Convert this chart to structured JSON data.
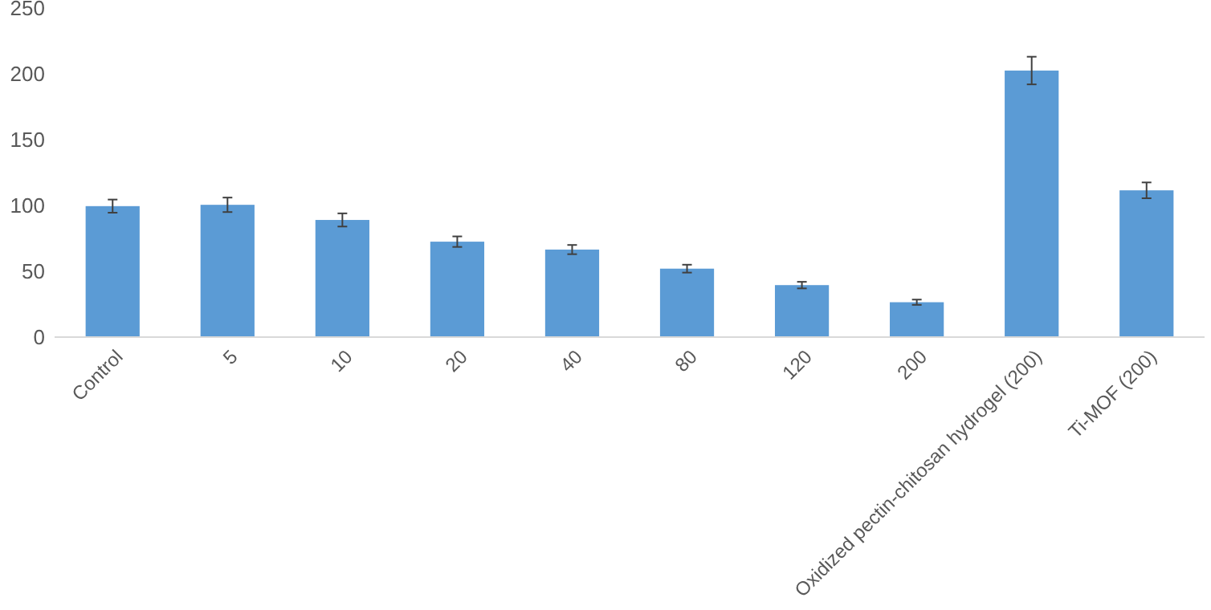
{
  "chart_data": {
    "type": "bar",
    "categories": [
      "Control",
      "5",
      "10",
      "20",
      "40",
      "80",
      "120",
      "200",
      "Oxidized pectin-chitosan hydrogel (200)",
      "Ti-MOF (200)"
    ],
    "values": [
      99.5,
      100.5,
      89,
      72.5,
      66.5,
      52,
      39.5,
      26.5,
      202.5,
      111.5
    ],
    "errors": [
      5,
      5.5,
      5,
      4,
      3.5,
      3,
      2.5,
      2,
      10.5,
      6
    ],
    "color": "#5b9bd5",
    "ylim": [
      0,
      250
    ],
    "yticks": [
      0,
      50,
      100,
      150,
      200,
      250
    ],
    "grid": false
  }
}
